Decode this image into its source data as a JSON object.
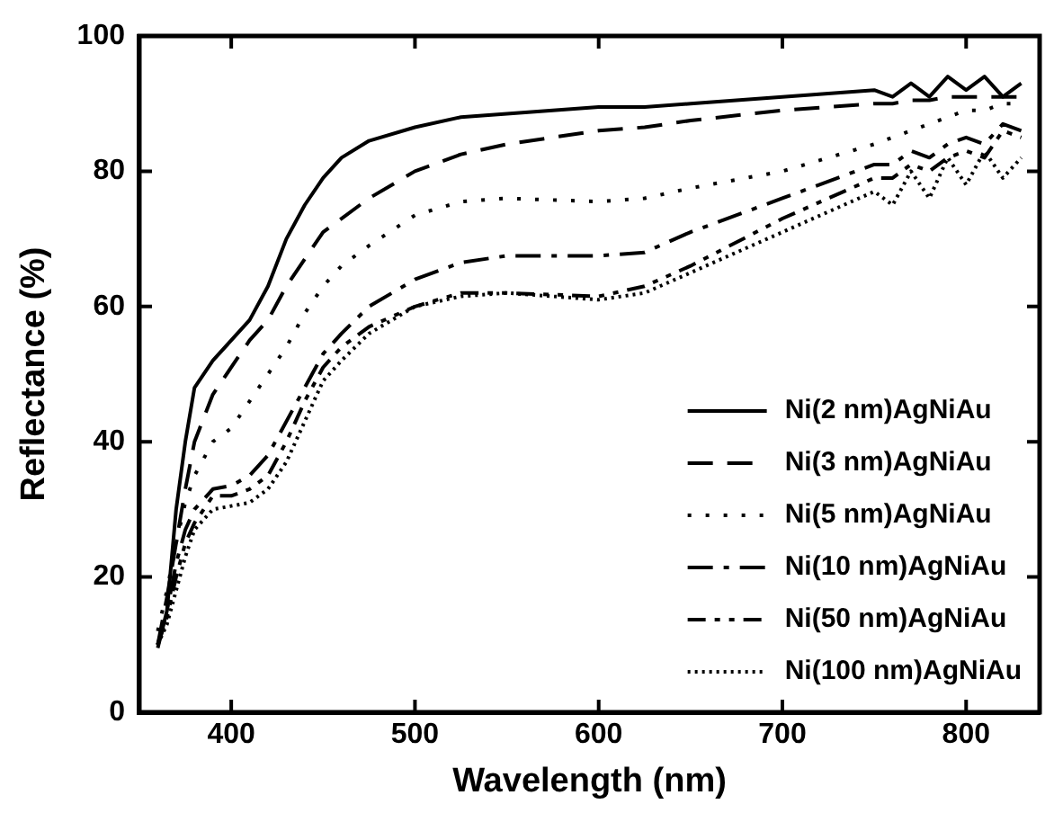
{
  "chart_data": {
    "type": "line",
    "xlabel": "Wavelength (nm)",
    "ylabel": "Reflectance (%)",
    "xlim": [
      350,
      840
    ],
    "xticks": [
      400,
      500,
      600,
      700,
      800
    ],
    "ylim": [
      0,
      100
    ],
    "yticks": [
      0,
      20,
      40,
      60,
      80,
      100
    ],
    "grid": false,
    "legend": "bottom right",
    "marker": "none",
    "x": [
      360,
      365,
      370,
      375,
      380,
      390,
      400,
      410,
      420,
      430,
      440,
      450,
      460,
      475,
      500,
      525,
      550,
      600,
      625,
      650,
      700,
      750,
      760,
      770,
      780,
      790,
      800,
      810,
      820,
      830
    ],
    "series": [
      {
        "name": "Ni(2 nm)AgNiAu",
        "color": "#000000",
        "line_style": "solid",
        "values": [
          9.5,
          15,
          30,
          40,
          48,
          52,
          55,
          58,
          63,
          70,
          75,
          79,
          82,
          84.5,
          86.5,
          88,
          88.5,
          89.5,
          89.5,
          90,
          91,
          92,
          91,
          93,
          91,
          94,
          92,
          94,
          91,
          93
        ]
      },
      {
        "name": "Ni(3 nm)AgNiAu",
        "color": "#000000",
        "line_style": "dashed",
        "values": [
          10,
          17,
          25,
          33,
          40,
          47,
          51,
          55,
          58,
          63,
          67,
          71,
          73,
          76,
          80,
          82.5,
          84,
          86,
          86.5,
          87.5,
          89,
          90,
          90,
          90.5,
          90.5,
          91,
          91,
          91,
          91,
          91
        ]
      },
      {
        "name": "Ni(5 nm)AgNiAu",
        "color": "#000000",
        "line_style": "dotted",
        "values": [
          12,
          18,
          25,
          31,
          35,
          40,
          42,
          46,
          50,
          54,
          59,
          63,
          66,
          69,
          73.5,
          75.5,
          76,
          75.5,
          76,
          77.5,
          80,
          84,
          85,
          86,
          87,
          88,
          89,
          89,
          90,
          90
        ]
      },
      {
        "name": "Ni(10 nm)AgNiAu",
        "color": "#000000",
        "line_style": "dashdot",
        "values": [
          10,
          15,
          22,
          27,
          30,
          33,
          33.5,
          35,
          38,
          43,
          48,
          53,
          56,
          60,
          64,
          66.5,
          67.5,
          67.5,
          68,
          71,
          76,
          81,
          81,
          83,
          82,
          84,
          85,
          84,
          87,
          86
        ]
      },
      {
        "name": "Ni(50 nm)AgNiAu",
        "color": "#000000",
        "line_style": "dashdotdot",
        "values": [
          10,
          14,
          20,
          25,
          28,
          32,
          32,
          33,
          35,
          40,
          46,
          51,
          54,
          57,
          60,
          62,
          62,
          61.5,
          63,
          66,
          73,
          79,
          79,
          81,
          80,
          82,
          83,
          82,
          86,
          85
        ]
      },
      {
        "name": "Ni(100 nm)AgNiAu",
        "color": "#000000",
        "line_style": "dotted_fine",
        "values": [
          10,
          13,
          18,
          23,
          27,
          30,
          30.5,
          31,
          33,
          37,
          43,
          49,
          52,
          56,
          60,
          61.5,
          62,
          61,
          62,
          65,
          71,
          77,
          75,
          80,
          76,
          82,
          78,
          83,
          79,
          82
        ]
      }
    ]
  }
}
